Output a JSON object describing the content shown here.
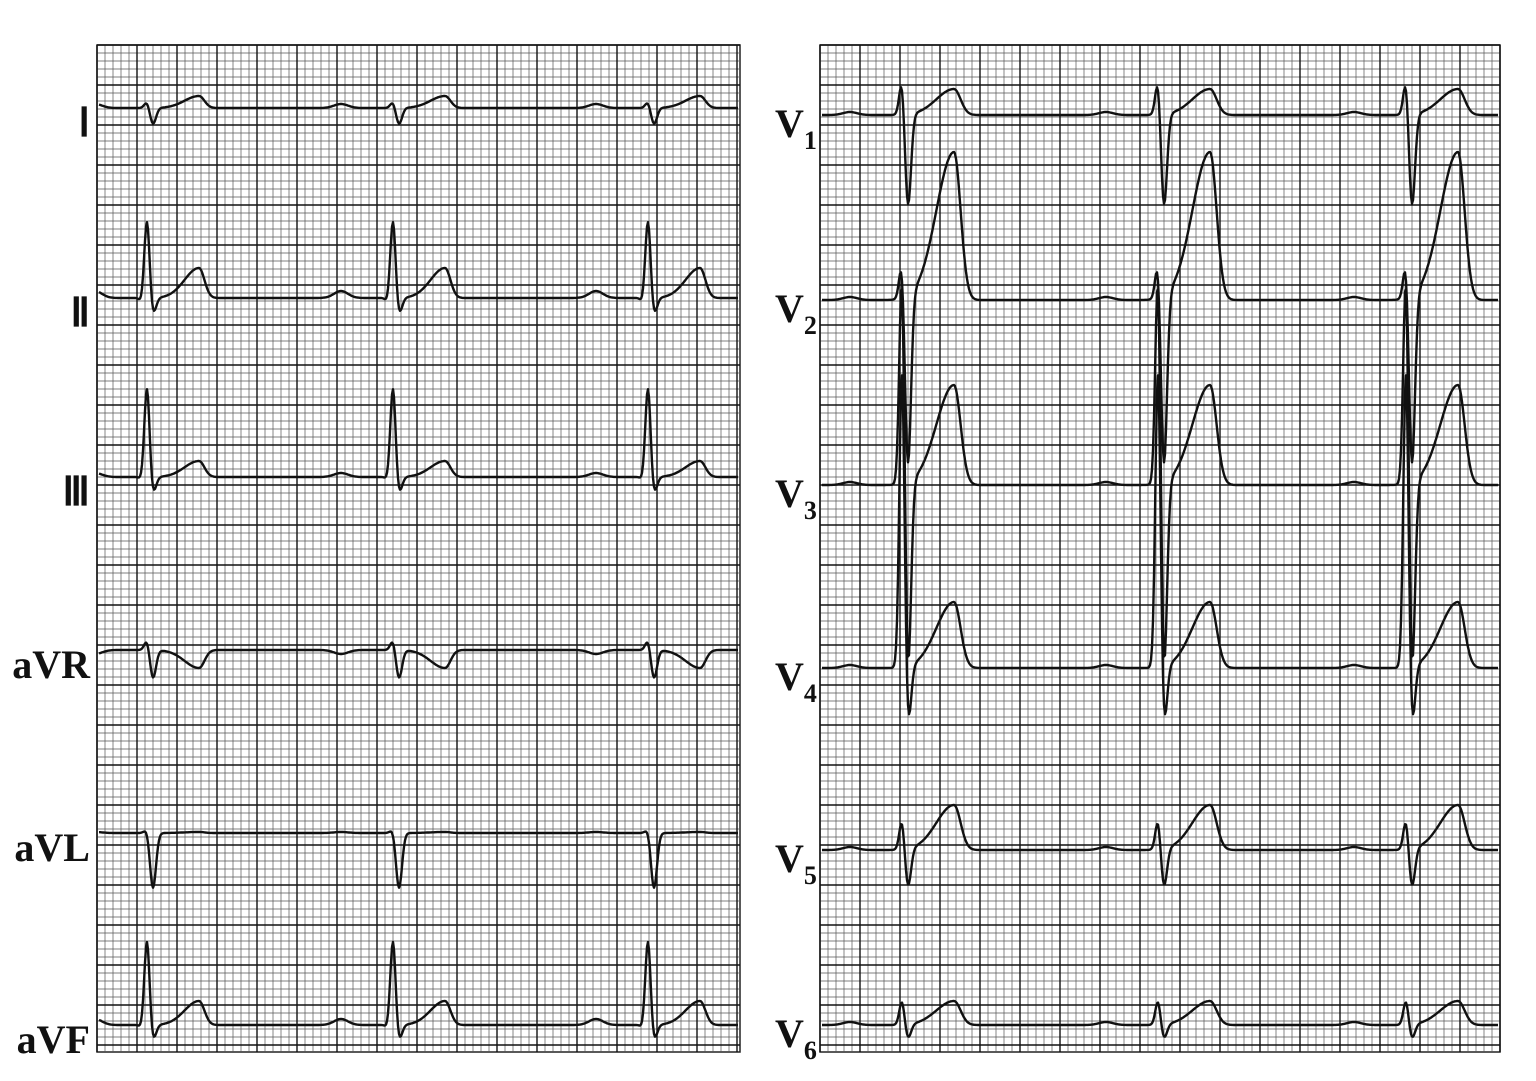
{
  "limb_leads": [
    {
      "name": "Ⅰ"
    },
    {
      "name": "Ⅱ"
    },
    {
      "name": "Ⅲ"
    },
    {
      "name": "aVR"
    },
    {
      "name": "aVL"
    },
    {
      "name": "aVF"
    }
  ],
  "chest_leads": [
    {
      "letter": "V",
      "subscript": "1"
    },
    {
      "letter": "V",
      "subscript": "2"
    },
    {
      "letter": "V",
      "subscript": "3"
    },
    {
      "letter": "V",
      "subscript": "4"
    },
    {
      "letter": "V",
      "subscript": "5"
    },
    {
      "letter": "V",
      "subscript": "6"
    }
  ]
}
